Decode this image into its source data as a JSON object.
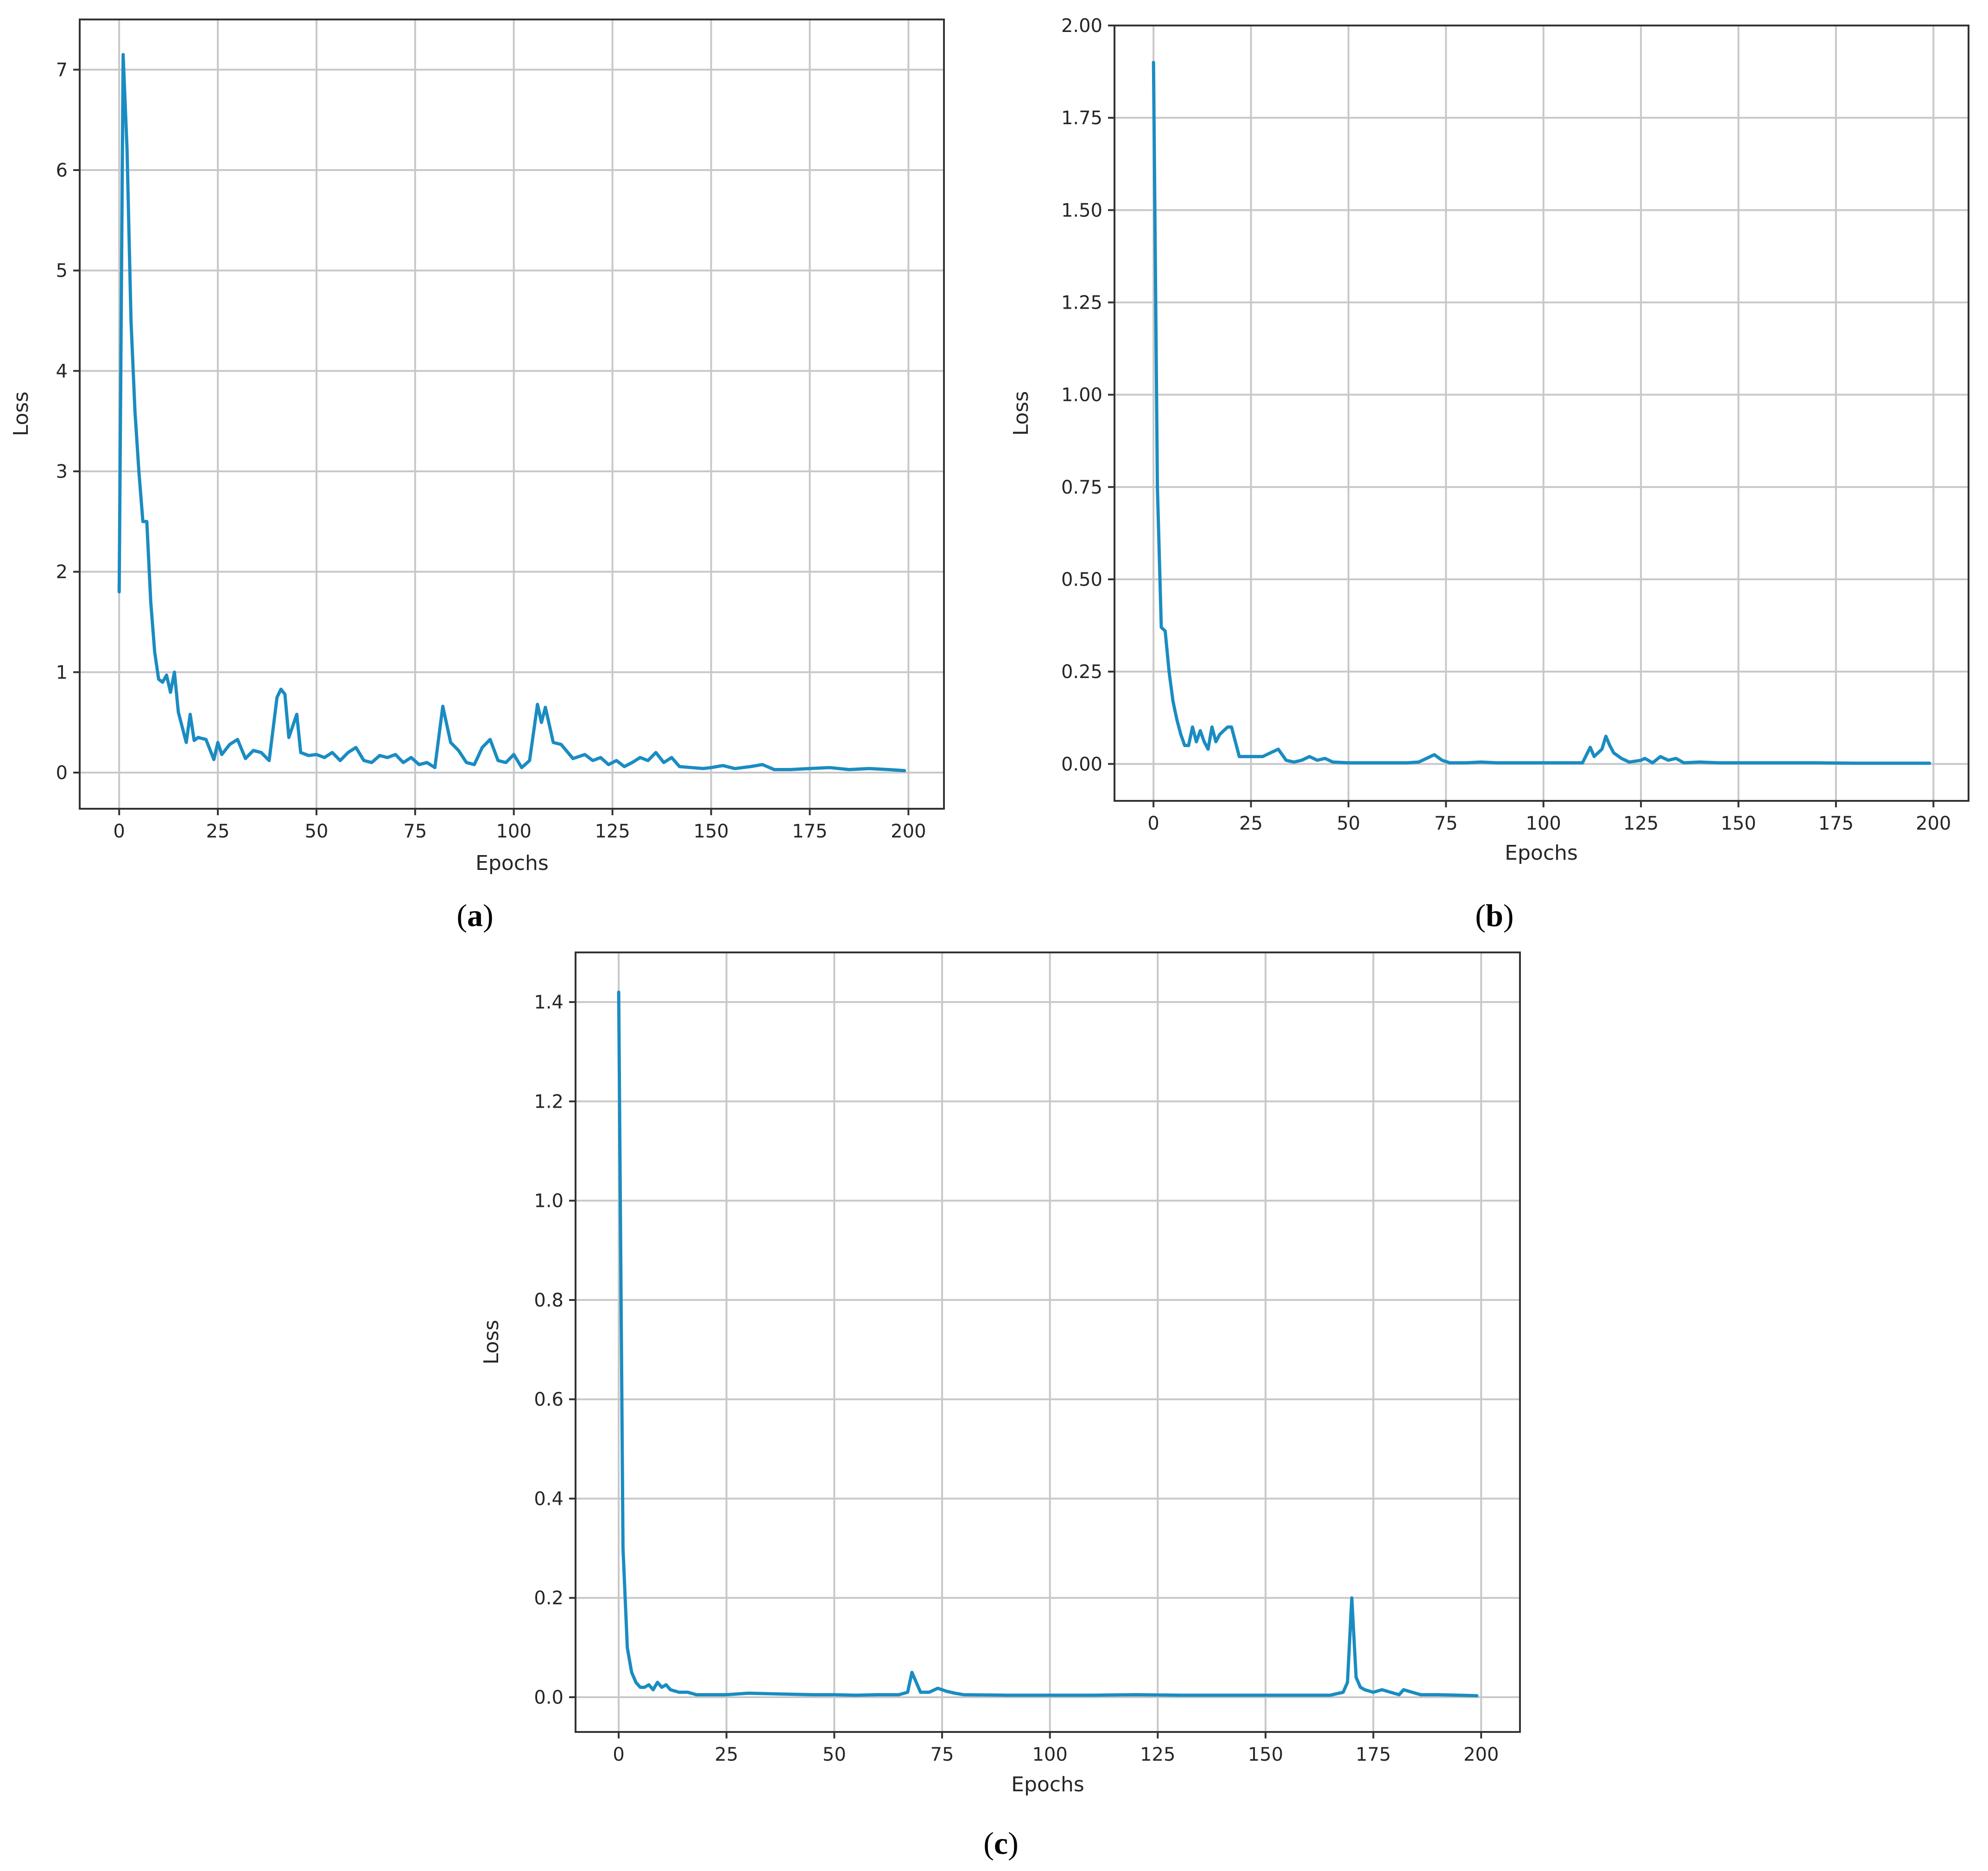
{
  "chart_data": [
    {
      "type": "line",
      "caption": "a",
      "xlabel": "Epochs",
      "ylabel": "Loss",
      "xlim": [
        -10,
        209
      ],
      "ylim": [
        -0.36,
        7.5
      ],
      "xticks": [
        0,
        25,
        50,
        75,
        100,
        125,
        150,
        175,
        200
      ],
      "yticks": [
        0,
        1,
        2,
        3,
        4,
        5,
        6,
        7
      ],
      "ytick_labels": [
        "0",
        "1",
        "2",
        "3",
        "4",
        "5",
        "6",
        "7"
      ],
      "grid": true,
      "color": "#1a8cc2",
      "series": [
        {
          "x": [
            0,
            1,
            2,
            3,
            4,
            5,
            6,
            7,
            8,
            9,
            10,
            11,
            12,
            13,
            14,
            15,
            16,
            17,
            18,
            19,
            20,
            22,
            24,
            25,
            26,
            28,
            30,
            32,
            34,
            36,
            38,
            40,
            41,
            42,
            43,
            45,
            46,
            48,
            50,
            52,
            54,
            56,
            58,
            60,
            62,
            64,
            66,
            68,
            70,
            72,
            74,
            76,
            78,
            80,
            82,
            84,
            86,
            88,
            90,
            92,
            94,
            96,
            98,
            100,
            102,
            104,
            106,
            107,
            108,
            110,
            112,
            115,
            118,
            120,
            122,
            124,
            126,
            128,
            130,
            132,
            134,
            136,
            138,
            140,
            142,
            145,
            148,
            150,
            153,
            156,
            160,
            163,
            166,
            170,
            175,
            180,
            185,
            190,
            195,
            199
          ],
          "y": [
            1.8,
            7.15,
            6.2,
            4.5,
            3.6,
            3.0,
            2.5,
            2.5,
            1.7,
            1.2,
            0.93,
            0.9,
            0.97,
            0.8,
            1.0,
            0.6,
            0.45,
            0.3,
            0.58,
            0.32,
            0.35,
            0.33,
            0.13,
            0.3,
            0.18,
            0.28,
            0.33,
            0.14,
            0.22,
            0.2,
            0.12,
            0.75,
            0.83,
            0.78,
            0.35,
            0.58,
            0.2,
            0.17,
            0.18,
            0.15,
            0.2,
            0.12,
            0.2,
            0.25,
            0.12,
            0.1,
            0.17,
            0.15,
            0.18,
            0.1,
            0.15,
            0.08,
            0.1,
            0.05,
            0.66,
            0.3,
            0.22,
            0.1,
            0.08,
            0.25,
            0.33,
            0.12,
            0.1,
            0.18,
            0.05,
            0.12,
            0.68,
            0.5,
            0.65,
            0.3,
            0.28,
            0.14,
            0.18,
            0.12,
            0.15,
            0.08,
            0.12,
            0.06,
            0.1,
            0.15,
            0.12,
            0.2,
            0.1,
            0.15,
            0.06,
            0.05,
            0.04,
            0.05,
            0.07,
            0.04,
            0.06,
            0.08,
            0.03,
            0.03,
            0.04,
            0.05,
            0.03,
            0.04,
            0.03,
            0.02
          ]
        }
      ]
    },
    {
      "type": "line",
      "caption": "b",
      "xlabel": "Epochs",
      "ylabel": "Loss",
      "xlim": [
        -10,
        209
      ],
      "ylim": [
        -0.1,
        2.0
      ],
      "xticks": [
        0,
        25,
        50,
        75,
        100,
        125,
        150,
        175,
        200
      ],
      "yticks": [
        0,
        0.25,
        0.5,
        0.75,
        1.0,
        1.25,
        1.5,
        1.75,
        2.0
      ],
      "ytick_labels": [
        "0.00",
        "0.25",
        "0.50",
        "0.75",
        "1.00",
        "1.25",
        "1.50",
        "1.75",
        "2.00"
      ],
      "grid": true,
      "color": "#1a8cc2",
      "series": [
        {
          "x": [
            0,
            1,
            2,
            3,
            4,
            5,
            6,
            7,
            8,
            9,
            10,
            11,
            12,
            13,
            14,
            15,
            16,
            17,
            18,
            19,
            20,
            22,
            24,
            26,
            28,
            30,
            32,
            34,
            36,
            38,
            40,
            42,
            44,
            46,
            50,
            55,
            60,
            65,
            68,
            70,
            72,
            74,
            76,
            80,
            84,
            88,
            95,
            100,
            105,
            110,
            112,
            113,
            114,
            115,
            116,
            117,
            118,
            120,
            122,
            125,
            126,
            128,
            130,
            132,
            134,
            136,
            140,
            145,
            150,
            160,
            170,
            180,
            190,
            199
          ],
          "y": [
            1.9,
            0.75,
            0.37,
            0.36,
            0.25,
            0.17,
            0.12,
            0.08,
            0.05,
            0.05,
            0.1,
            0.06,
            0.09,
            0.06,
            0.04,
            0.1,
            0.06,
            0.08,
            0.09,
            0.1,
            0.1,
            0.02,
            0.02,
            0.02,
            0.02,
            0.03,
            0.04,
            0.01,
            0.005,
            0.01,
            0.02,
            0.01,
            0.015,
            0.005,
            0.003,
            0.003,
            0.003,
            0.003,
            0.005,
            0.015,
            0.025,
            0.01,
            0.003,
            0.003,
            0.005,
            0.003,
            0.003,
            0.003,
            0.003,
            0.003,
            0.045,
            0.02,
            0.03,
            0.04,
            0.075,
            0.05,
            0.03,
            0.015,
            0.005,
            0.01,
            0.015,
            0.003,
            0.02,
            0.01,
            0.015,
            0.003,
            0.005,
            0.003,
            0.003,
            0.003,
            0.003,
            0.002,
            0.002,
            0.002
          ]
        }
      ]
    },
    {
      "type": "line",
      "caption": "c",
      "xlabel": "Epochs",
      "ylabel": "Loss",
      "xlim": [
        -10,
        209
      ],
      "ylim": [
        -0.07,
        1.5
      ],
      "xticks": [
        0,
        25,
        50,
        75,
        100,
        125,
        150,
        175,
        200
      ],
      "yticks": [
        0,
        0.2,
        0.4,
        0.6,
        0.8,
        1.0,
        1.2,
        1.4
      ],
      "ytick_labels": [
        "0.0",
        "0.2",
        "0.4",
        "0.6",
        "0.8",
        "1.0",
        "1.2",
        "1.4"
      ],
      "grid": true,
      "color": "#1a8cc2",
      "series": [
        {
          "x": [
            0,
            1,
            2,
            3,
            4,
            5,
            6,
            7,
            8,
            9,
            10,
            11,
            12,
            14,
            16,
            18,
            20,
            25,
            30,
            35,
            40,
            45,
            50,
            55,
            60,
            65,
            67,
            68,
            69,
            70,
            72,
            74,
            76,
            78,
            80,
            90,
            100,
            110,
            120,
            130,
            140,
            150,
            160,
            165,
            168,
            169,
            170,
            171,
            172,
            173,
            175,
            177,
            179,
            181,
            182,
            184,
            186,
            190,
            195,
            199
          ],
          "y": [
            1.42,
            0.3,
            0.1,
            0.05,
            0.03,
            0.02,
            0.02,
            0.025,
            0.015,
            0.03,
            0.02,
            0.025,
            0.015,
            0.01,
            0.01,
            0.005,
            0.005,
            0.005,
            0.008,
            0.007,
            0.006,
            0.005,
            0.005,
            0.004,
            0.005,
            0.005,
            0.01,
            0.05,
            0.03,
            0.01,
            0.01,
            0.018,
            0.012,
            0.008,
            0.005,
            0.004,
            0.004,
            0.004,
            0.005,
            0.004,
            0.004,
            0.004,
            0.004,
            0.004,
            0.01,
            0.03,
            0.2,
            0.04,
            0.02,
            0.015,
            0.01,
            0.015,
            0.01,
            0.005,
            0.015,
            0.01,
            0.005,
            0.005,
            0.004,
            0.003
          ]
        }
      ]
    }
  ]
}
